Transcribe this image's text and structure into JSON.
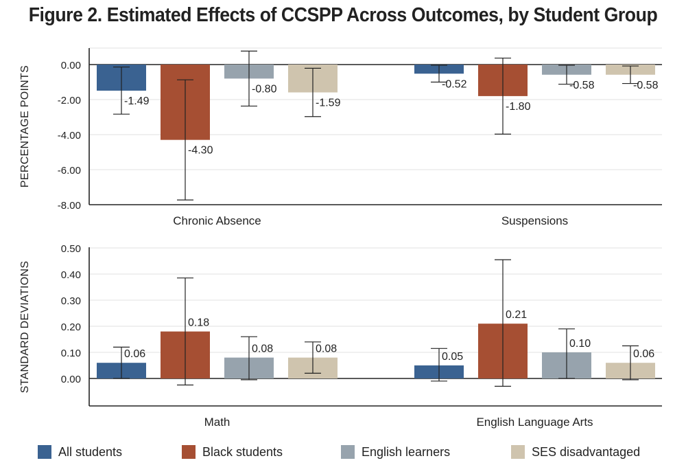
{
  "title": "Figure 2. Estimated Effects of CCSPP Across Outcomes, by Student Group",
  "colors": {
    "All students": "#3a6291",
    "Black students": "#a64f33",
    "English learners": "#97a3ad",
    "SES disadvantaged": "#cfc4ae"
  },
  "legend": [
    {
      "label": "All students",
      "color": "#3a6291"
    },
    {
      "label": "Black students",
      "color": "#a64f33"
    },
    {
      "label": "English learners",
      "color": "#97a3ad"
    },
    {
      "label": "SES disadvantaged",
      "color": "#cfc4ae"
    }
  ],
  "chart_data": [
    {
      "type": "bar",
      "ylabel": "PERCENTAGE POINTS",
      "ylim": [
        -8,
        0.9
      ],
      "yticks": [
        0,
        -2,
        -4,
        -6,
        -8
      ],
      "ytick_labels": [
        "0.00",
        "-2.00",
        "-4.00",
        "-6.00",
        "-8.00"
      ],
      "categories": [
        "Chronic Absence",
        "Suspensions"
      ],
      "series": [
        {
          "name": "All students",
          "values": [
            -1.49,
            -0.52
          ],
          "labels": [
            "-1.49",
            "-0.52"
          ],
          "ci": [
            [
              -2.83,
              -0.14
            ],
            [
              -1.0,
              -0.04
            ]
          ]
        },
        {
          "name": "Black students",
          "values": [
            -4.3,
            -1.8
          ],
          "labels": [
            "-4.30",
            "-1.80"
          ],
          "ci": [
            [
              -7.73,
              -0.87
            ],
            [
              -3.97,
              0.37
            ]
          ]
        },
        {
          "name": "English learners",
          "values": [
            -0.8,
            -0.58
          ],
          "labels": [
            "-0.80",
            "-0.58"
          ],
          "ci": [
            [
              -2.37,
              0.77
            ],
            [
              -1.12,
              -0.04
            ]
          ]
        },
        {
          "name": "SES disadvantaged",
          "values": [
            -1.59,
            -0.58
          ],
          "labels": [
            "-1.59",
            "-0.58"
          ],
          "ci": [
            [
              -2.97,
              -0.21
            ],
            [
              -1.08,
              -0.08
            ]
          ]
        }
      ]
    },
    {
      "type": "bar",
      "ylabel": "STANDARD DEVIATIONS",
      "ylim": [
        -0.1,
        0.5
      ],
      "yticks": [
        0,
        0.1,
        0.2,
        0.3,
        0.4,
        0.5
      ],
      "ytick_labels": [
        "0.00",
        "0.10",
        "0.20",
        "0.30",
        "0.40",
        "0.50"
      ],
      "categories": [
        "Math",
        "English Language Arts"
      ],
      "series": [
        {
          "name": "All students",
          "values": [
            0.06,
            0.05
          ],
          "labels": [
            "0.06",
            "0.05"
          ],
          "ci": [
            [
              0.0,
              0.12
            ],
            [
              -0.01,
              0.115
            ]
          ]
        },
        {
          "name": "Black students",
          "values": [
            0.18,
            0.21
          ],
          "labels": [
            "0.18",
            "0.21"
          ],
          "ci": [
            [
              -0.025,
              0.385
            ],
            [
              -0.03,
              0.455
            ]
          ]
        },
        {
          "name": "English learners",
          "values": [
            0.08,
            0.1
          ],
          "labels": [
            "0.08",
            "0.10"
          ],
          "ci": [
            [
              -0.005,
              0.16
            ],
            [
              0.0,
              0.19
            ]
          ]
        },
        {
          "name": "SES disadvantaged",
          "values": [
            0.08,
            0.06
          ],
          "labels": [
            "0.08",
            "0.06"
          ],
          "ci": [
            [
              0.02,
              0.14
            ],
            [
              -0.005,
              0.125
            ]
          ]
        }
      ]
    }
  ]
}
